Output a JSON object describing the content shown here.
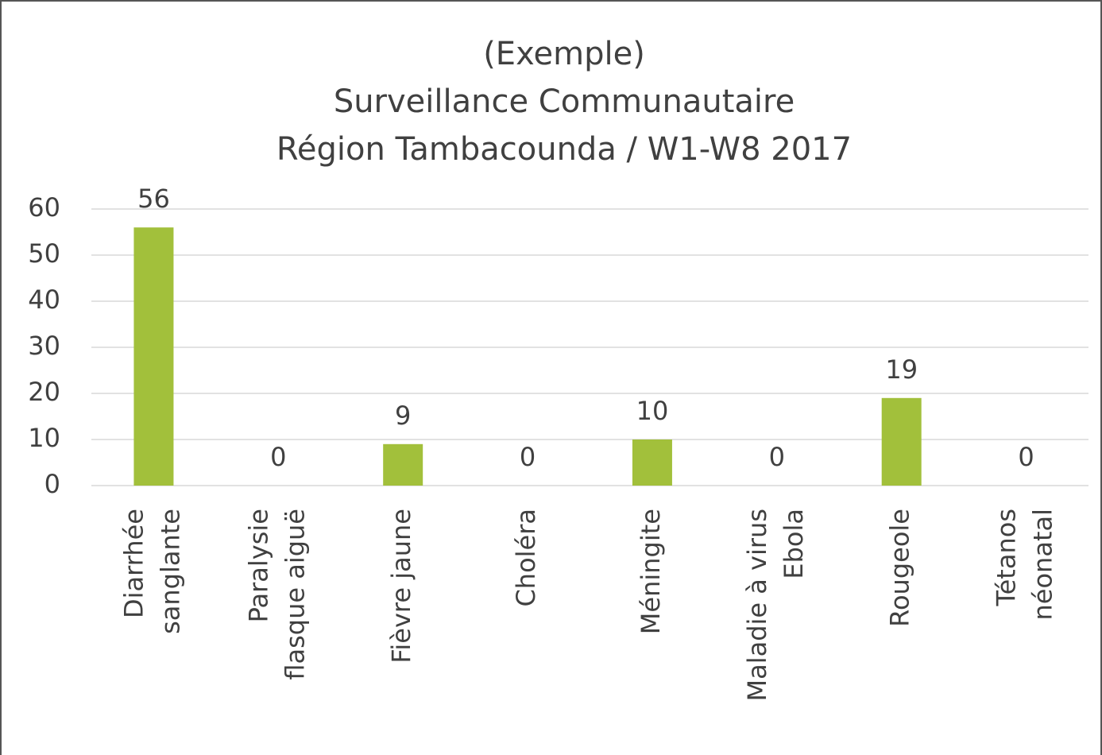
{
  "chart_data": {
    "type": "bar",
    "title": [
      "(Exemple)",
      "Surveillance Communautaire",
      "Région Tambacounda / W1-W8 2017"
    ],
    "categories": [
      [
        "Diarrhée",
        "sanglante"
      ],
      [
        "Paralysie",
        "flasque aiguë"
      ],
      [
        "Fièvre jaune"
      ],
      [
        "Choléra"
      ],
      [
        "Méningite"
      ],
      [
        "Maladie à virus",
        "Ebola"
      ],
      [
        "Rougeole"
      ],
      [
        "Tétanos",
        "néonatal"
      ]
    ],
    "values": [
      56,
      0,
      9,
      0,
      10,
      0,
      19,
      0
    ],
    "color": "#a2c03b",
    "ylim": [
      0,
      60
    ],
    "yticks": [
      0,
      10,
      20,
      30,
      40,
      50,
      60
    ],
    "grid": true
  }
}
